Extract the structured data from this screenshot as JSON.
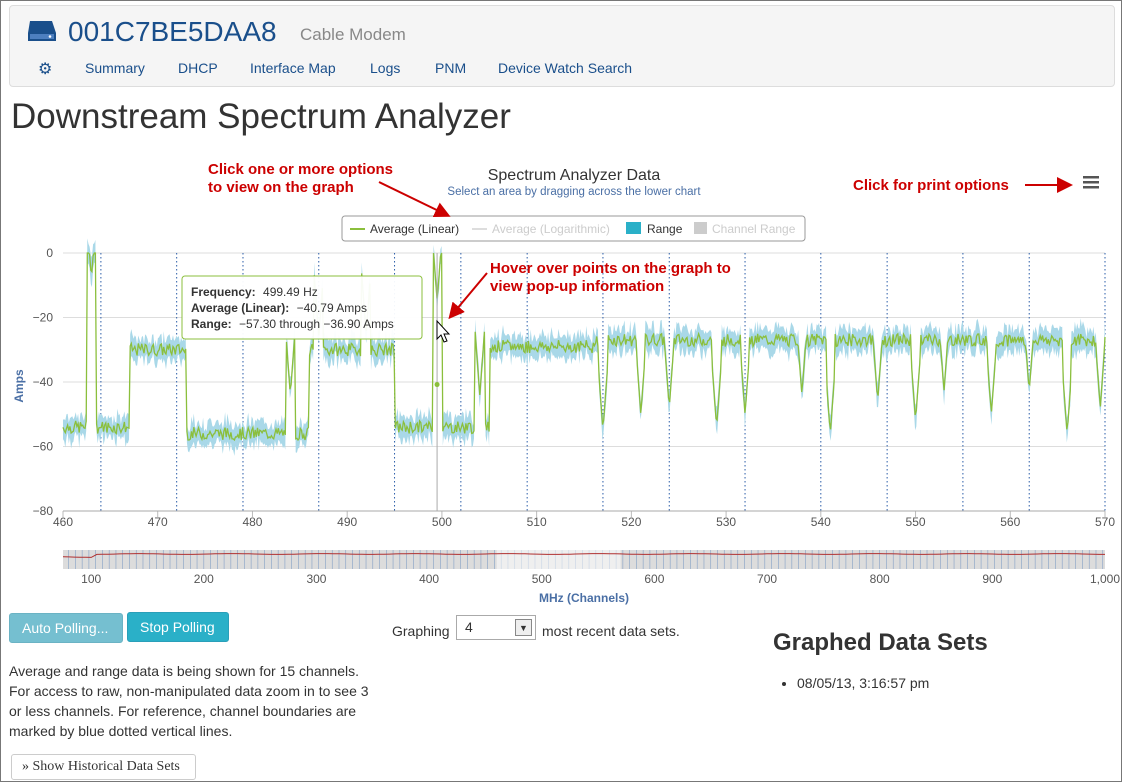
{
  "device": {
    "id": "001C7BE5DAA8",
    "type": "Cable Modem"
  },
  "nav": {
    "items": [
      "Summary",
      "DHCP",
      "Interface Map",
      "Logs",
      "PNM",
      "Device Watch Search"
    ]
  },
  "page": {
    "title": "Downstream Spectrum Analyzer"
  },
  "chart": {
    "title": "Spectrum Analyzer Data",
    "subtitle": "Select an area by dragging across the lower chart",
    "legend": [
      "Average (Linear)",
      "Average (Logarithmic)",
      "Range",
      "Channel Range"
    ],
    "ylabel": "Amps",
    "xlabel": "MHz (Channels)",
    "yticks": [
      "0",
      "−20",
      "−40",
      "−60",
      "−80"
    ],
    "xticks": [
      "460",
      "470",
      "480",
      "490",
      "500",
      "510",
      "520",
      "530",
      "540",
      "550",
      "560",
      "570"
    ],
    "nav_xticks": [
      "100",
      "200",
      "300",
      "400",
      "500",
      "600",
      "700",
      "800",
      "900",
      "1,000"
    ],
    "tooltip": {
      "freq_label": "Frequency:",
      "freq_value": "499.49 Hz",
      "avg_label": "Average (Linear):",
      "avg_value": "−40.79 Amps",
      "range_label": "Range:",
      "range_value": "−57.30 through −36.90 Amps"
    },
    "colors": {
      "line": "#8bbf3c",
      "range": "#a9d8e8",
      "grid": "#dddddd",
      "channel": "#2a5ca8",
      "annot": "#cc0000"
    }
  },
  "annotations": {
    "options": "Click one or more options\nto view on the graph",
    "print": "Click for print options",
    "hover": "Hover over points on the graph to\nview pop-up information"
  },
  "chart_data": {
    "type": "line",
    "title": "Spectrum Analyzer Data",
    "xlabel": "",
    "ylabel": "Amps",
    "xlim": [
      460,
      570
    ],
    "ylim": [
      -80,
      0
    ],
    "channel_boundaries": [
      464,
      472,
      479,
      487,
      495,
      502,
      509,
      517,
      524,
      532,
      540,
      547,
      555,
      562,
      570
    ],
    "segments": [
      {
        "x0": 460,
        "x1": 467,
        "level": -54
      },
      {
        "x0": 467,
        "x1": 473,
        "level": -30
      },
      {
        "x0": 473,
        "x1": 486,
        "level": -56
      },
      {
        "x0": 486,
        "x1": 495,
        "level": -30
      },
      {
        "x0": 495,
        "x1": 505,
        "level": -54
      },
      {
        "x0": 505,
        "x1": 516,
        "level": -29
      },
      {
        "x0": 516,
        "x1": 570,
        "level": -27
      }
    ],
    "spikes": [
      {
        "x": 463,
        "y": -8
      },
      {
        "x": 468,
        "y": -47
      },
      {
        "x": 484,
        "y": -44
      },
      {
        "x": 487,
        "y": -26
      },
      {
        "x": 492,
        "y": -25
      },
      {
        "x": 499.5,
        "y": -15
      },
      {
        "x": 504,
        "y": -44
      }
    ],
    "dips": [
      517,
      521,
      524,
      529,
      532,
      538,
      541,
      546,
      550,
      553,
      558,
      562,
      566,
      569.5
    ],
    "dip_depths": [
      -55,
      -50,
      -48,
      -54,
      -50,
      -44,
      -56,
      -46,
      -52,
      -43,
      -50,
      -43,
      -56,
      -48
    ],
    "series": [
      {
        "name": "Average (Linear)"
      },
      {
        "name": "Range"
      }
    ],
    "hover_point": {
      "x": 499.49,
      "y": -40.79,
      "range": [
        -57.3,
        -36.9
      ]
    },
    "navigator": {
      "xlim": [
        75,
        1000
      ],
      "selected": [
        460,
        570
      ]
    }
  },
  "controls": {
    "auto_polling": "Auto Polling...",
    "stop_polling": "Stop Polling",
    "graphing_label": "Graphing",
    "graphing_value": "4",
    "recent_label": "most recent data sets."
  },
  "info_text": "Average and range data is being shown for 15 channels. For access to raw, non-manipulated data zoom in to see 3 or less channels. For reference, channel boundaries are marked by blue dotted vertical lines.",
  "graphed": {
    "title": "Graphed Data Sets",
    "items": [
      "08/05/13, 3:16:57 pm"
    ]
  },
  "history_button": "Show Historical Data Sets"
}
